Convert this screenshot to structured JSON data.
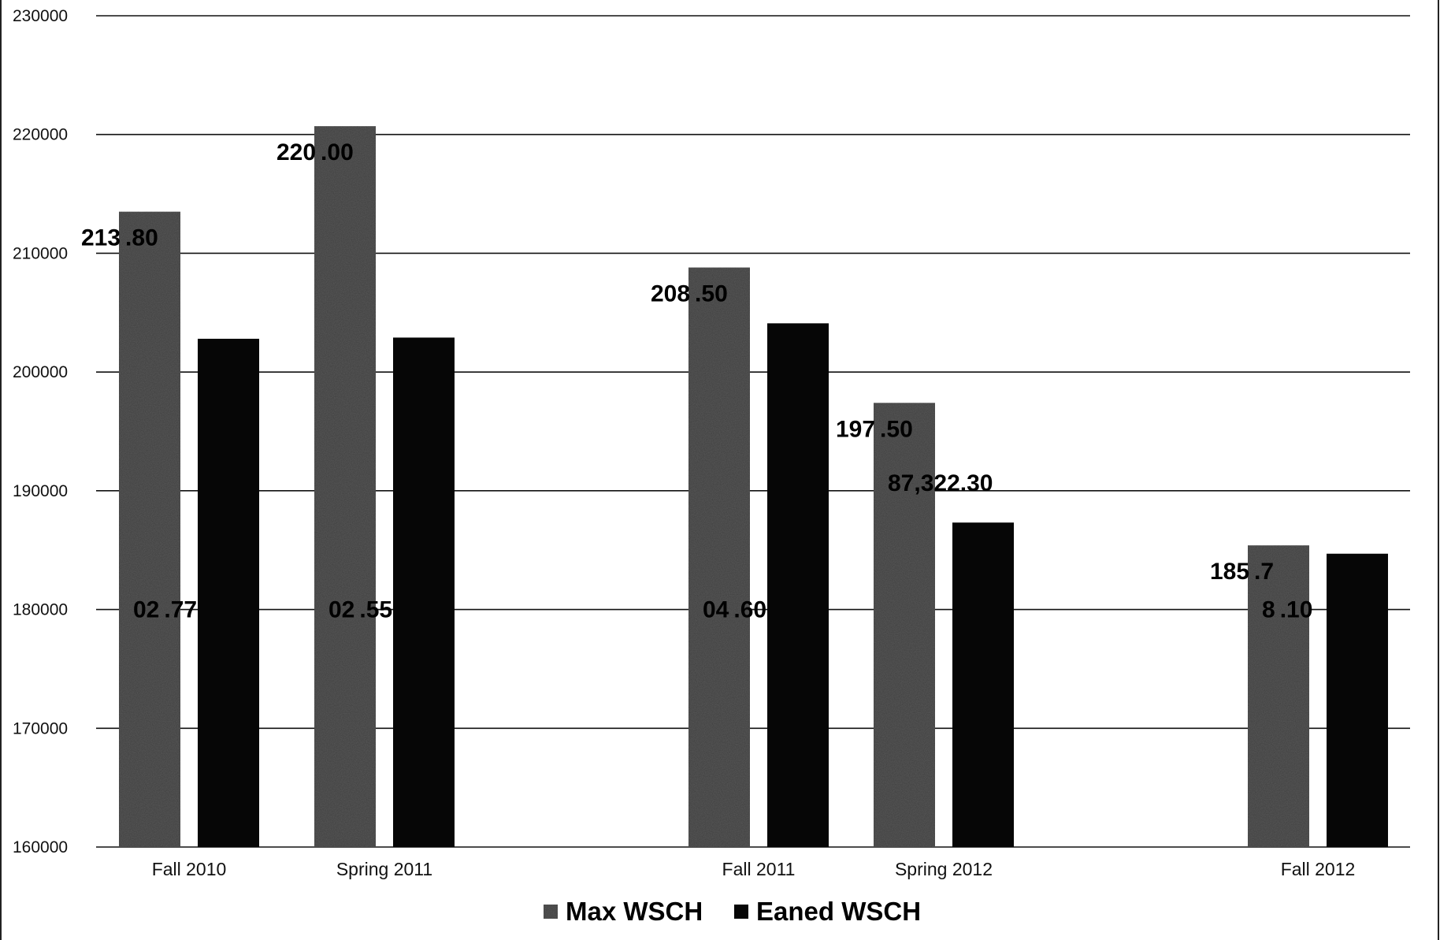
{
  "chart_data": {
    "type": "bar",
    "title": "",
    "xlabel": "",
    "ylabel": "",
    "ylim": [
      160000,
      230000
    ],
    "yticks": [
      "230000",
      "220000",
      "210000",
      "200000",
      "190000",
      "180000",
      "170000",
      "160000"
    ],
    "grid": true,
    "legend_position": "bottom",
    "categories": [
      "Fall 2010",
      "Spring 2011",
      "Fall 2011",
      "Spring 2012",
      "Fall 2012"
    ],
    "series": [
      {
        "name": "Max WSCH",
        "color": "#5a5a5a",
        "values": [
          213500,
          220700,
          208800,
          197400,
          185400
        ],
        "labels": [
          "213 .80",
          "220 .00",
          "208 .50",
          "197 .50",
          "185 .7"
        ]
      },
      {
        "name": "Eaned WSCH",
        "color": "#060606",
        "values": [
          202800,
          202900,
          204100,
          187322.3,
          184700
        ],
        "labels": [
          "02 .77",
          "02 .55",
          "04 .60",
          "87,322.30",
          "8 .10"
        ]
      }
    ]
  }
}
